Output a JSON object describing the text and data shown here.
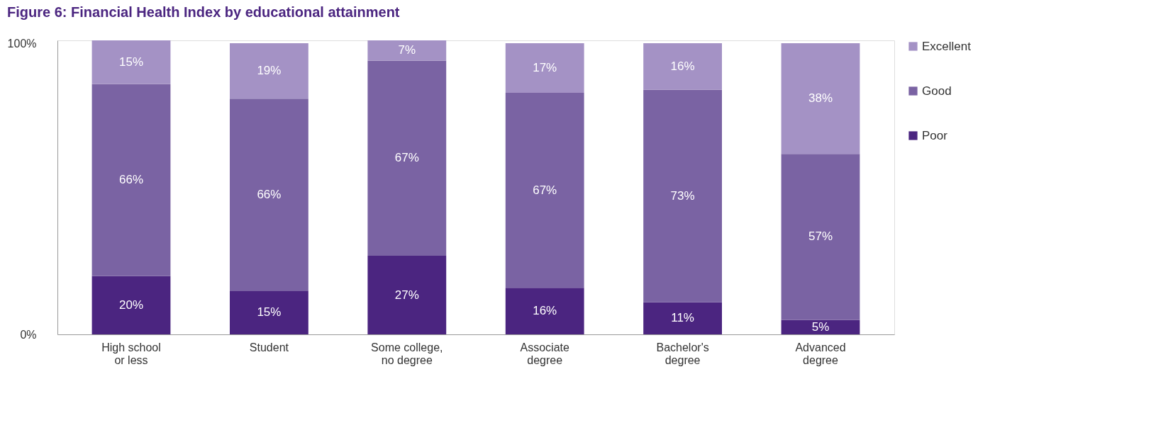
{
  "chart_data": {
    "type": "bar",
    "title": "Figure 6: Financial Health Index by educational attainment",
    "categories": [
      "High school\nor less",
      "Student",
      "Some college,\nno degree",
      "Associate\ndegree",
      "Bachelor's\ndegree",
      "Advanced\ndegree"
    ],
    "stacked": true,
    "series": [
      {
        "name": "Poor",
        "color": "#4b2580",
        "values": [
          20,
          15,
          27,
          16,
          11,
          5
        ],
        "value_labels": [
          "20%",
          "15%",
          "27%",
          "16%",
          "11%",
          "5%"
        ]
      },
      {
        "name": "Good",
        "color": "#7a63a3",
        "values": [
          66,
          66,
          67,
          67,
          73,
          57
        ],
        "value_labels": [
          "66%",
          "66%",
          "67%",
          "67%",
          "73%",
          "57%"
        ]
      },
      {
        "name": "Excellent",
        "color": "#a492c5",
        "values": [
          15,
          19,
          7,
          17,
          16,
          38
        ],
        "value_labels": [
          "15%",
          "19%",
          "7%",
          "17%",
          "16%",
          "38%"
        ]
      }
    ],
    "ylim": [
      0,
      101
    ],
    "yticks": [
      {
        "value": 0,
        "label": "0%"
      },
      {
        "value": 100,
        "label": "100%"
      }
    ],
    "grid": false,
    "legend": "right"
  }
}
